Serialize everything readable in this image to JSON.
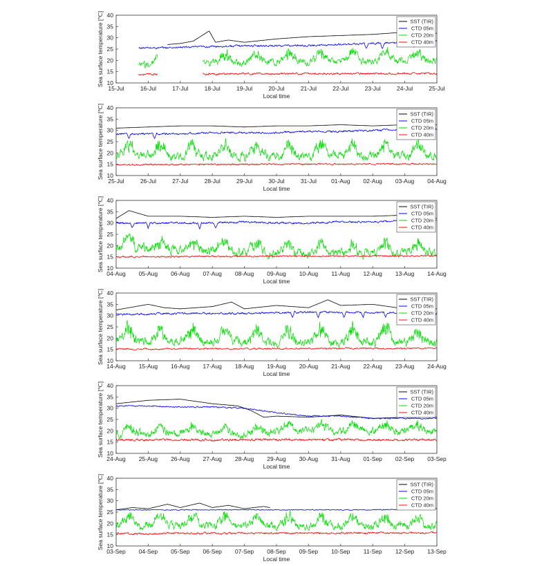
{
  "axis": {
    "ylabel": "Sea surface temperature [℃]",
    "xlabel": "Local time",
    "yticks": [
      "10",
      "15",
      "20",
      "25",
      "30",
      "35",
      "40"
    ]
  },
  "legend": [
    {
      "name": "SST (TIR)",
      "color": "#000000"
    },
    {
      "name": "CTD 05m",
      "color": "#0000ff"
    },
    {
      "name": "CTD 20m",
      "color": "#00dd00"
    },
    {
      "name": "CTD 40m",
      "color": "#ff0000"
    }
  ],
  "chart_data": [
    {
      "type": "line",
      "xticks": [
        "15-Jul",
        "16-Jul",
        "17-Jul",
        "18-Jul",
        "19-Jul",
        "20-Jul",
        "21-Jul",
        "22-Jul",
        "23-Jul",
        "24-Jul",
        "25-Jul"
      ],
      "ylim": [
        10,
        40
      ],
      "series": [
        {
          "name": "SST (TIR)",
          "color": "#000000",
          "x": [
            1.6,
            2.0,
            2.4,
            2.9,
            3.1,
            3.5,
            4.0,
            5.0,
            6.0,
            7.0,
            8.0,
            9.0,
            10.0
          ],
          "y": [
            27,
            27.5,
            28.5,
            33,
            28,
            29,
            28,
            29.5,
            30.5,
            31,
            31.5,
            32.5,
            32
          ]
        },
        {
          "name": "CTD 05m",
          "color": "#0000ff",
          "x": [
            0.7,
            1.3,
            2.7,
            4.0,
            5.0,
            6.0,
            7.0,
            8.0,
            9.0,
            10.0
          ],
          "y": [
            25.5,
            25.5,
            26,
            26.5,
            26.5,
            26.5,
            27,
            27.5,
            28,
            28.5
          ],
          "noise": 0.3,
          "dips": [
            7.8,
            8.3,
            9.3
          ]
        },
        {
          "name": "CTD 20m",
          "color": "#00dd00",
          "x": [
            0.7,
            1.3,
            2.7,
            10.0
          ],
          "y": [
            18.5,
            19.5,
            20,
            21
          ],
          "noise": 1.2,
          "amp": 4.5,
          "gaps": [
            [
              1.3,
              2.7
            ]
          ]
        },
        {
          "name": "CTD 40m",
          "color": "#ff0000",
          "x": [
            0.7,
            1.3,
            2.7,
            10.0
          ],
          "y": [
            13.8,
            13.8,
            14,
            14.2
          ],
          "noise": 0.3,
          "gaps": [
            [
              1.3,
              2.7
            ]
          ]
        }
      ]
    },
    {
      "type": "line",
      "xticks": [
        "25-Jul",
        "26-Jul",
        "27-Jul",
        "28-Jul",
        "29-Jul",
        "30-Jul",
        "31-Jul",
        "01-Aug",
        "02-Aug",
        "03-Aug",
        "04-Aug"
      ],
      "ylim": [
        10,
        40
      ],
      "series": [
        {
          "name": "SST (TIR)",
          "color": "#000000",
          "x": [
            0,
            1,
            2,
            3,
            4,
            5,
            6,
            7,
            8,
            9,
            10
          ],
          "y": [
            31,
            31.5,
            32,
            32,
            31.5,
            32,
            32,
            32.5,
            32,
            32.5,
            32.5
          ]
        },
        {
          "name": "CTD 05m",
          "color": "#0000ff",
          "x": [
            0,
            1,
            2,
            3,
            4,
            5,
            6,
            7,
            8,
            9,
            10
          ],
          "y": [
            28.5,
            28.5,
            28.5,
            29,
            29,
            29,
            29.5,
            29.5,
            30,
            30.5,
            30.5
          ],
          "noise": 0.3,
          "dips": [
            0.4,
            1.2,
            9.3
          ]
        },
        {
          "name": "CTD 20m",
          "color": "#00dd00",
          "x": [
            0,
            10
          ],
          "y": [
            20,
            20
          ],
          "noise": 1.5,
          "amp": 5.5
        },
        {
          "name": "CTD 40m",
          "color": "#ff0000",
          "x": [
            0,
            10
          ],
          "y": [
            14.8,
            15.2
          ],
          "noise": 0.25
        }
      ]
    },
    {
      "type": "line",
      "xticks": [
        "04-Aug",
        "05-Aug",
        "06-Aug",
        "07-Aug",
        "08-Aug",
        "09-Aug",
        "10-Aug",
        "11-Aug",
        "12-Aug",
        "13-Aug",
        "14-Aug"
      ],
      "ylim": [
        10,
        40
      ],
      "series": [
        {
          "name": "SST (TIR)",
          "color": "#000000",
          "x": [
            0,
            0.4,
            1,
            2,
            3,
            4,
            5,
            6,
            7,
            8,
            9,
            10
          ],
          "y": [
            32,
            35.5,
            33,
            33,
            32.5,
            33,
            32.5,
            33,
            33,
            33,
            33.5,
            32
          ]
        },
        {
          "name": "CTD 05m",
          "color": "#0000ff",
          "x": [
            0,
            1,
            2,
            3,
            4,
            5,
            6,
            7,
            8,
            9,
            10
          ],
          "y": [
            30,
            30,
            30,
            30,
            30.5,
            30,
            30,
            30.5,
            30.5,
            31,
            31
          ],
          "noise": 0.3,
          "dips": [
            0.5,
            1.0,
            2.6,
            3.1
          ]
        },
        {
          "name": "CTD 20m",
          "color": "#00dd00",
          "x": [
            0,
            3,
            4,
            10
          ],
          "y": [
            20,
            19,
            18,
            17.5
          ],
          "noise": 1.5,
          "amp": 4.5
        },
        {
          "name": "CTD 40m",
          "color": "#ff0000",
          "x": [
            0,
            10
          ],
          "y": [
            15,
            15.5
          ],
          "noise": 0.25
        }
      ]
    },
    {
      "type": "line",
      "xticks": [
        "14-Aug",
        "15-Aug",
        "16-Aug",
        "17-Aug",
        "18-Aug",
        "19-Aug",
        "20-Aug",
        "21-Aug",
        "22-Aug",
        "23-Aug",
        "24-Aug"
      ],
      "ylim": [
        10,
        40
      ],
      "series": [
        {
          "name": "SST (TIR)",
          "color": "#000000",
          "x": [
            0,
            1,
            1.5,
            2,
            3,
            3.6,
            4,
            5,
            6,
            6.6,
            7,
            8,
            9,
            10
          ],
          "y": [
            32.5,
            35,
            33.5,
            33,
            34,
            36,
            33,
            34.5,
            33.5,
            37,
            34.5,
            35,
            33,
            33
          ]
        },
        {
          "name": "CTD 05m",
          "color": "#0000ff",
          "x": [
            0,
            2,
            4,
            6,
            8,
            10
          ],
          "y": [
            30.5,
            31,
            31,
            31.5,
            31.5,
            31
          ],
          "noise": 0.3,
          "dips": [
            5.5,
            6.3,
            7.1,
            7.7,
            8.4,
            9.0
          ]
        },
        {
          "name": "CTD 20m",
          "color": "#00dd00",
          "x": [
            0,
            10
          ],
          "y": [
            20,
            19.5
          ],
          "noise": 1.5,
          "amp": 6.5
        },
        {
          "name": "CTD 40m",
          "color": "#ff0000",
          "x": [
            0,
            10
          ],
          "y": [
            15.2,
            15.5
          ],
          "noise": 0.25
        }
      ]
    },
    {
      "type": "line",
      "xticks": [
        "24-Aug",
        "25-Aug",
        "26-Aug",
        "27-Aug",
        "28-Aug",
        "29-Aug",
        "30-Aug",
        "31-Aug",
        "01-Sep",
        "02-Sep",
        "03-Sep"
      ],
      "ylim": [
        10,
        40
      ],
      "series": [
        {
          "name": "SST (TIR)",
          "color": "#000000",
          "x": [
            0,
            1,
            2,
            3,
            3.8,
            4.2,
            4.6,
            5,
            6,
            7,
            8,
            9,
            10
          ],
          "y": [
            32,
            33.5,
            34,
            32,
            31,
            29,
            26,
            26.5,
            26,
            27,
            25.5,
            26,
            26
          ]
        },
        {
          "name": "CTD 05m",
          "color": "#0000ff",
          "x": [
            0,
            1,
            2,
            3,
            4,
            5,
            6,
            7,
            8,
            9,
            10
          ],
          "y": [
            31,
            31,
            30.5,
            30.5,
            30,
            28,
            26.5,
            26.5,
            25.5,
            25.5,
            25.5
          ],
          "noise": 0.2
        },
        {
          "name": "CTD 20m",
          "color": "#00dd00",
          "x": [
            0,
            4.5,
            5,
            10
          ],
          "y": [
            19.5,
            19.5,
            21,
            20.5
          ],
          "noise": 1.3,
          "amp": 3.5
        },
        {
          "name": "CTD 40m",
          "color": "#ff0000",
          "x": [
            0,
            10
          ],
          "y": [
            16,
            16
          ],
          "noise": 0.35
        }
      ]
    },
    {
      "type": "line",
      "xticks": [
        "03-Sep",
        "04-Sep",
        "05-Sep",
        "06-Sep",
        "07-Sep",
        "08-Sep",
        "09-Sep",
        "10-Sep",
        "11-Sep",
        "12-Sep",
        "13-Sep"
      ],
      "ylim": [
        10,
        40
      ],
      "series": [
        {
          "name": "SST (TIR)",
          "color": "#000000",
          "x": [
            0,
            0.5,
            1,
            1.6,
            2,
            2.6,
            3,
            3.5,
            4,
            4.6,
            4.8
          ],
          "y": [
            26,
            27,
            26.5,
            28.5,
            27,
            29,
            27,
            28,
            26.5,
            27.5,
            27
          ]
        },
        {
          "name": "CTD 05m",
          "color": "#0000ff",
          "x": [
            0,
            2,
            4,
            6,
            8,
            10
          ],
          "y": [
            26,
            26,
            26,
            26,
            26,
            26.5
          ],
          "noise": 0.15
        },
        {
          "name": "CTD 20m",
          "color": "#00dd00",
          "x": [
            0,
            4,
            10
          ],
          "y": [
            20.5,
            20,
            20
          ],
          "noise": 1.3,
          "amp": 4.5
        },
        {
          "name": "CTD 40m",
          "color": "#ff0000",
          "x": [
            0,
            10
          ],
          "y": [
            15.5,
            15.8
          ],
          "noise": 0.3
        }
      ]
    }
  ]
}
